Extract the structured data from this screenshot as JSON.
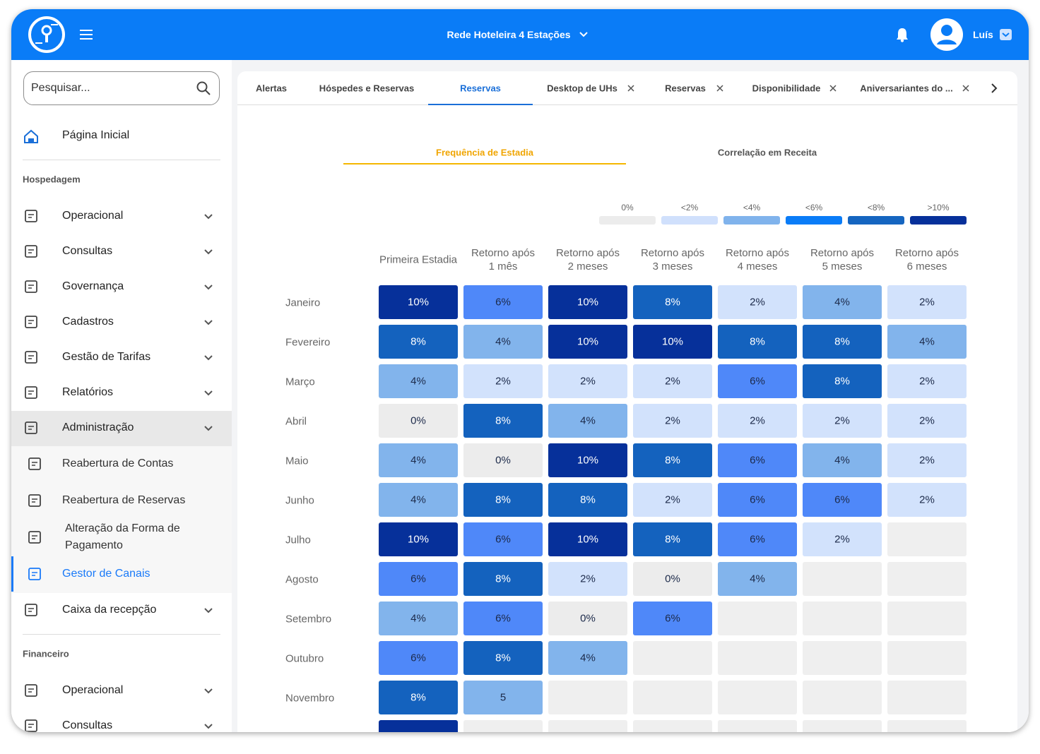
{
  "header": {
    "title": "Rede Hoteleira 4 Estações",
    "user": "Luís"
  },
  "sidebar": {
    "search_placeholder": "Pesquisar...",
    "home": "Página Inicial",
    "sections": [
      {
        "title": "Hospedagem",
        "items": [
          {
            "label": "Operacional",
            "expandable": true
          },
          {
            "label": "Consultas",
            "expandable": true
          },
          {
            "label": "Governança",
            "expandable": true
          },
          {
            "label": "Cadastros",
            "expandable": true
          },
          {
            "label": "Gestão de Tarifas",
            "expandable": true
          },
          {
            "label": "Relatórios",
            "expandable": true
          },
          {
            "label": "Administração",
            "expandable": true,
            "open": true,
            "children": [
              {
                "label": "Reabertura de Contas"
              },
              {
                "label": "Reabertura de Reservas"
              },
              {
                "label": "Alteração da Forma de Pagamento"
              },
              {
                "label": "Gestor de Canais",
                "active": true
              }
            ]
          },
          {
            "label": "Caixa da recepção",
            "expandable": true
          }
        ]
      },
      {
        "title": "Financeiro",
        "items": [
          {
            "label": "Operacional",
            "expandable": true
          },
          {
            "label": "Consultas",
            "expandable": true
          }
        ]
      }
    ]
  },
  "tabs": {
    "active": 2,
    "items": [
      {
        "label": "Alertas",
        "closable": false
      },
      {
        "label": "Hóspedes e Reservas",
        "closable": false
      },
      {
        "label": "Reservas",
        "closable": false
      },
      {
        "label": "Desktop de UHs",
        "closable": true
      },
      {
        "label": "Reservas",
        "closable": true
      },
      {
        "label": "Disponibilidade",
        "closable": true
      },
      {
        "label": "Aniversariantes do ...",
        "closable": true
      }
    ]
  },
  "subtabs": {
    "active": 0,
    "items": [
      "Frequência de Estadia",
      "Correlação em Receita"
    ]
  },
  "legend": [
    {
      "label": "0%",
      "color": "#ececec"
    },
    {
      "label": "<2%",
      "color": "#d0e0fc"
    },
    {
      "label": "<4%",
      "color": "#80b3ec"
    },
    {
      "label": "<6%",
      "color": "#0a7cf7"
    },
    {
      "label": "<8%",
      "color": "#1565c0"
    },
    {
      "label": ">10%",
      "color": "#06309a"
    }
  ],
  "table": {
    "level_colors": [
      "#ececec",
      "#d2e2fc",
      "#82b4ec",
      "#4f88f9",
      "#1462be",
      "#06309a"
    ],
    "empty_color": "#efefef",
    "columns": [
      "Primeira Estadia",
      "Retorno após 1 mês",
      "Retorno após 2 meses",
      "Retorno após 3 meses",
      "Retorno após 4 meses",
      "Retorno após 5 meses",
      "Retorno após 6 meses"
    ],
    "rows": [
      {
        "label": "Janeiro",
        "cells": [
          {
            "text": "10%",
            "level": 5
          },
          {
            "text": "6%",
            "level": 3
          },
          {
            "text": "10%",
            "level": 5
          },
          {
            "text": "8%",
            "level": 4
          },
          {
            "text": "2%",
            "level": 1
          },
          {
            "text": "4%",
            "level": 2
          },
          {
            "text": "2%",
            "level": 1
          }
        ]
      },
      {
        "label": "Fevereiro",
        "cells": [
          {
            "text": "8%",
            "level": 4
          },
          {
            "text": "4%",
            "level": 2
          },
          {
            "text": "10%",
            "level": 5
          },
          {
            "text": "10%",
            "level": 5
          },
          {
            "text": "8%",
            "level": 4
          },
          {
            "text": "8%",
            "level": 4
          },
          {
            "text": "4%",
            "level": 2
          }
        ]
      },
      {
        "label": "Março",
        "cells": [
          {
            "text": "4%",
            "level": 2
          },
          {
            "text": "2%",
            "level": 1
          },
          {
            "text": "2%",
            "level": 1
          },
          {
            "text": "2%",
            "level": 1
          },
          {
            "text": "6%",
            "level": 3
          },
          {
            "text": "8%",
            "level": 4
          },
          {
            "text": "2%",
            "level": 1
          }
        ]
      },
      {
        "label": "Abril",
        "cells": [
          {
            "text": "0%",
            "level": 0
          },
          {
            "text": "8%",
            "level": 4
          },
          {
            "text": "4%",
            "level": 2
          },
          {
            "text": "2%",
            "level": 1
          },
          {
            "text": "2%",
            "level": 1
          },
          {
            "text": "2%",
            "level": 1
          },
          {
            "text": "2%",
            "level": 1
          }
        ]
      },
      {
        "label": "Maio",
        "cells": [
          {
            "text": "4%",
            "level": 2
          },
          {
            "text": "0%",
            "level": 0
          },
          {
            "text": "10%",
            "level": 5
          },
          {
            "text": "8%",
            "level": 4
          },
          {
            "text": "6%",
            "level": 3
          },
          {
            "text": "4%",
            "level": 2
          },
          {
            "text": "2%",
            "level": 1
          }
        ]
      },
      {
        "label": "Junho",
        "cells": [
          {
            "text": "4%",
            "level": 2
          },
          {
            "text": "8%",
            "level": 4
          },
          {
            "text": "8%",
            "level": 4
          },
          {
            "text": "2%",
            "level": 1
          },
          {
            "text": "6%",
            "level": 3
          },
          {
            "text": "6%",
            "level": 3
          },
          {
            "text": "2%",
            "level": 1
          }
        ]
      },
      {
        "label": "Julho",
        "cells": [
          {
            "text": "10%",
            "level": 5
          },
          {
            "text": "6%",
            "level": 3
          },
          {
            "text": "10%",
            "level": 5
          },
          {
            "text": "8%",
            "level": 4
          },
          {
            "text": "6%",
            "level": 3
          },
          {
            "text": "2%",
            "level": 1
          },
          null
        ]
      },
      {
        "label": "Agosto",
        "cells": [
          {
            "text": "6%",
            "level": 3
          },
          {
            "text": "8%",
            "level": 4
          },
          {
            "text": "2%",
            "level": 1
          },
          {
            "text": "0%",
            "level": 0
          },
          {
            "text": "4%",
            "level": 2
          },
          null,
          null
        ]
      },
      {
        "label": "Setembro",
        "cells": [
          {
            "text": "4%",
            "level": 2
          },
          {
            "text": "6%",
            "level": 3
          },
          {
            "text": "0%",
            "level": 0
          },
          {
            "text": "6%",
            "level": 3
          },
          null,
          null,
          null
        ]
      },
      {
        "label": "Outubro",
        "cells": [
          {
            "text": "6%",
            "level": 3
          },
          {
            "text": "8%",
            "level": 4
          },
          {
            "text": "4%",
            "level": 2
          },
          null,
          null,
          null,
          null
        ]
      },
      {
        "label": "Novembro",
        "cells": [
          {
            "text": "8%",
            "level": 4
          },
          {
            "text": "5",
            "level": 2
          },
          null,
          null,
          null,
          null,
          null
        ]
      },
      {
        "label": null,
        "cells": [
          {
            "level": 5
          },
          null,
          null,
          null,
          null,
          null,
          null
        ]
      }
    ]
  }
}
